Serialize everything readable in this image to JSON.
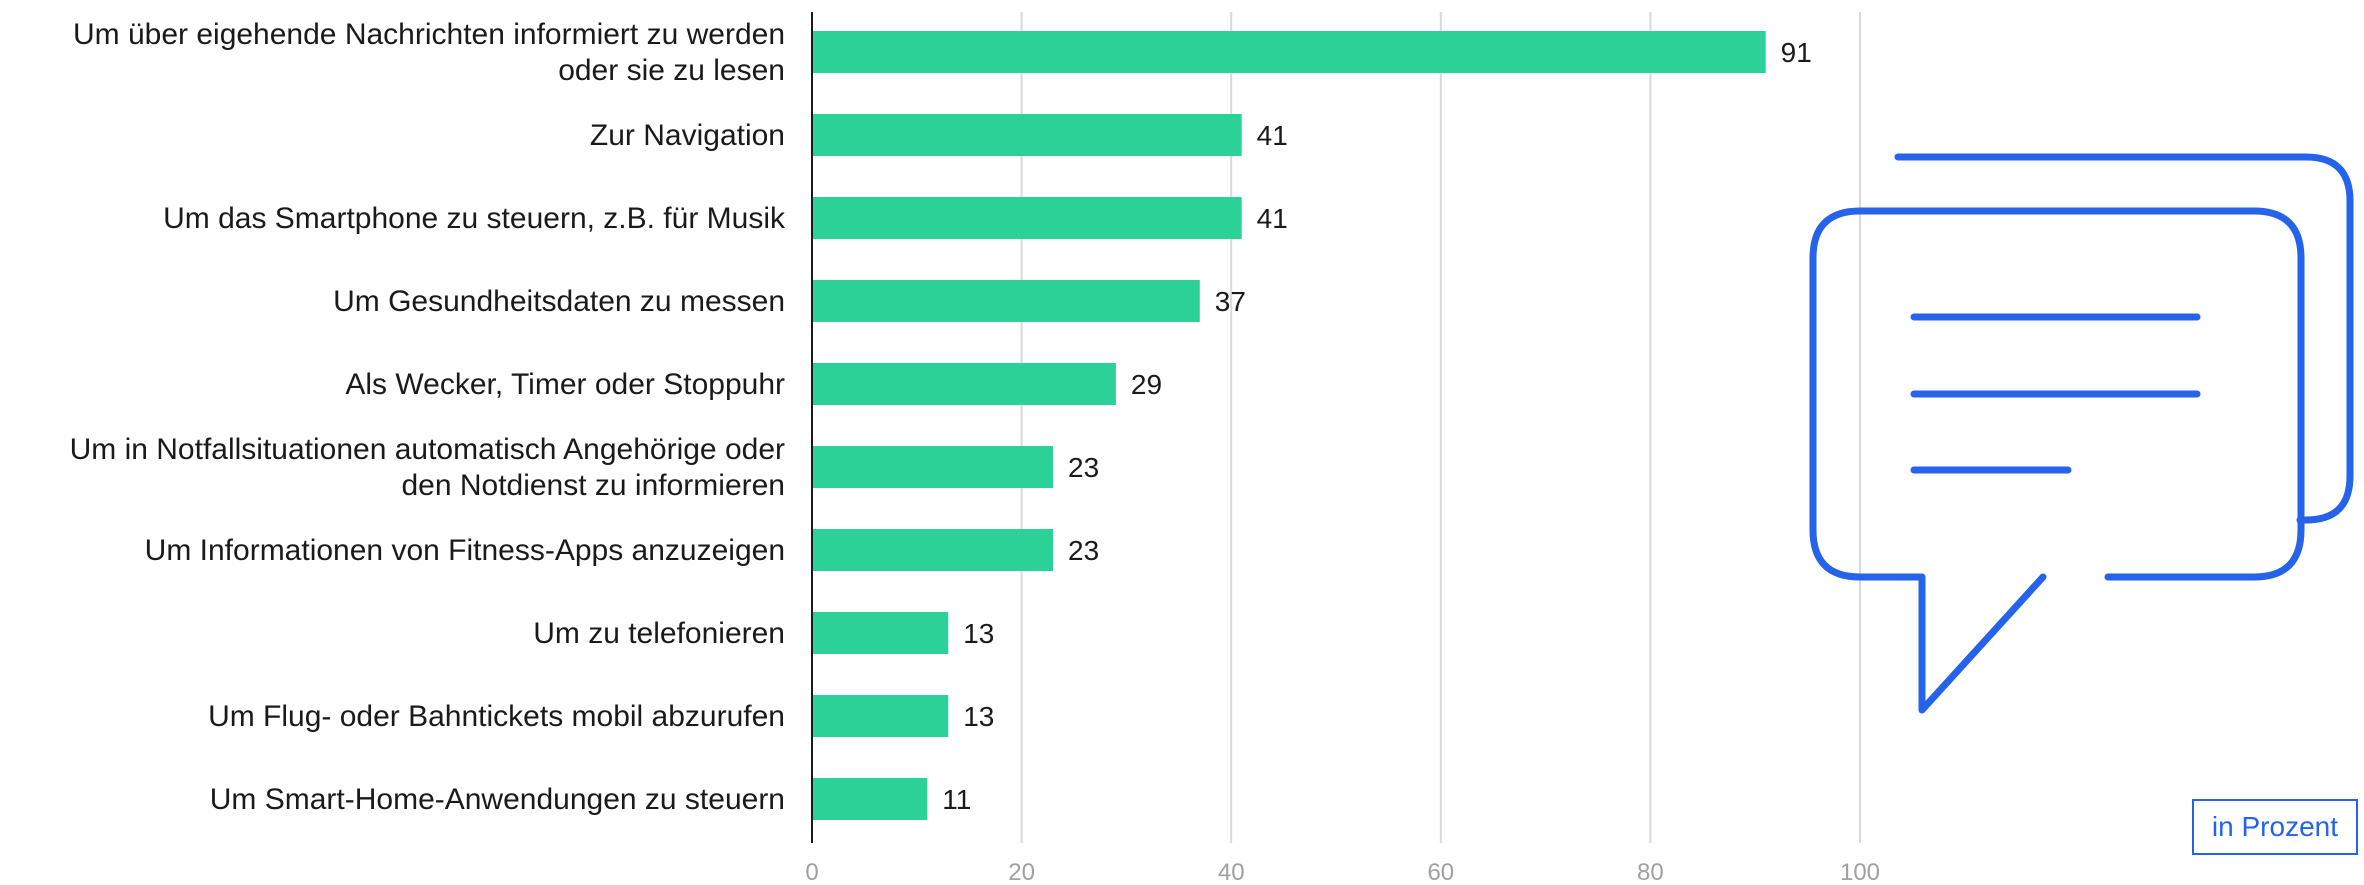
{
  "chart_data": {
    "type": "bar",
    "orientation": "horizontal",
    "categories": [
      "Um über eigehende Nachrichten informiert zu werden oder sie zu lesen",
      "Zur Navigation",
      "Um das Smartphone zu steuern, z.B. für Musik",
      "Um Gesundheitsdaten zu messen",
      "Als Wecker, Timer oder Stoppuhr",
      "Um in Notfallsituationen automatisch Angehörige oder den Notdienst zu informieren",
      "Um Informationen von Fitness-Apps anzuzeigen",
      "Um zu telefonieren",
      "Um Flug- oder Bahntickets mobil abzurufen",
      "Um Smart-Home-Anwendungen zu steuern"
    ],
    "category_lines": [
      [
        "Um über eigehende Nachrichten informiert zu werden",
        "oder sie zu lesen"
      ],
      [
        "Zur Navigation"
      ],
      [
        "Um das Smartphone zu steuern, z.B. für Musik"
      ],
      [
        "Um Gesundheitsdaten zu messen"
      ],
      [
        "Als Wecker, Timer oder Stoppuhr"
      ],
      [
        "Um in Notfallsituationen automatisch Angehörige oder",
        "den Notdienst zu informieren"
      ],
      [
        "Um Informationen von Fitness-Apps anzuzeigen"
      ],
      [
        "Um zu telefonieren"
      ],
      [
        "Um Flug- oder Bahntickets mobil abzurufen"
      ],
      [
        "Um Smart-Home-Anwendungen zu steuern"
      ]
    ],
    "values": [
      91,
      41,
      41,
      37,
      29,
      23,
      23,
      13,
      13,
      11
    ],
    "xlim": [
      0,
      100
    ],
    "xticks": [
      0,
      20,
      40,
      60,
      80,
      100
    ],
    "grid": true,
    "unit_label": "in Prozent",
    "colors": {
      "bar": "#2bd197",
      "grid": "#d9d9d9",
      "axis": "#1a1a1a",
      "icon": "#2563eb",
      "unit_box": "#2563eb"
    }
  },
  "decoration": {
    "icon": "chat-bubbles-icon"
  }
}
